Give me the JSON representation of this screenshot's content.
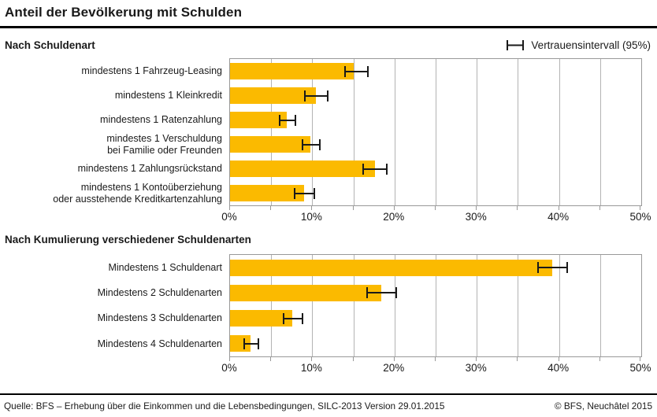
{
  "page": {
    "title": "Anteil der Bevölkerung mit Schulden",
    "footer_left": "Quelle: BFS – Erhebung über die Einkommen und die Lebensbedingungen, SILC-2013 Version 29.01.2015",
    "footer_right": "© BFS, Neuchâtel 2015"
  },
  "legend": {
    "label": "Vertrauensintervall (95%)"
  },
  "colors": {
    "bar": "#FBBA00",
    "error_bar": "#1a1a1a",
    "grid": "#b3b3b3",
    "frame": "#999999",
    "text": "#1a1a1a"
  },
  "chart_data": [
    {
      "type": "bar",
      "orientation": "horizontal",
      "section_title": "Nach Schuldenart",
      "categories": [
        "mindestens 1 Fahrzeug-Leasing",
        "mindestens 1 Kleinkredit",
        "mindestens 1 Ratenzahlung",
        "mindestes 1 Verschuldung\nbei Familie oder Freunden",
        "mindestens 1 Zahlungsrückstand",
        "mindestens 1 Kontoüberziehung\noder ausstehende Kreditkartenzahlung"
      ],
      "values": [
        15.0,
        10.4,
        6.9,
        9.8,
        17.6,
        9.0
      ],
      "ci_low": [
        13.9,
        9.0,
        5.9,
        8.7,
        16.1,
        7.8
      ],
      "ci_high": [
        16.9,
        12.0,
        8.0,
        11.0,
        19.2,
        10.3
      ],
      "xlim": [
        0,
        50
      ],
      "grid_step": 5,
      "tick_label_step": 10,
      "tick_labels": [
        "0%",
        "10%",
        "20%",
        "30%",
        "40%",
        "50%"
      ],
      "xlabel": "",
      "ylabel": ""
    },
    {
      "type": "bar",
      "orientation": "horizontal",
      "section_title": "Nach Kumulierung verschiedener Schuldenarten",
      "categories": [
        "Mindestens 1 Schuldenart",
        "Mindestens 2 Schuldenarten",
        "Mindestens 3 Schuldenarten",
        "Mindestens 4 Schuldenarten"
      ],
      "values": [
        39.2,
        18.4,
        7.6,
        2.5
      ],
      "ci_low": [
        37.4,
        16.6,
        6.4,
        1.6
      ],
      "ci_high": [
        41.1,
        20.3,
        8.9,
        3.5
      ],
      "xlim": [
        0,
        50
      ],
      "grid_step": 5,
      "tick_label_step": 10,
      "tick_labels": [
        "0%",
        "10%",
        "20%",
        "30%",
        "40%",
        "50%"
      ],
      "xlabel": "",
      "ylabel": ""
    }
  ]
}
